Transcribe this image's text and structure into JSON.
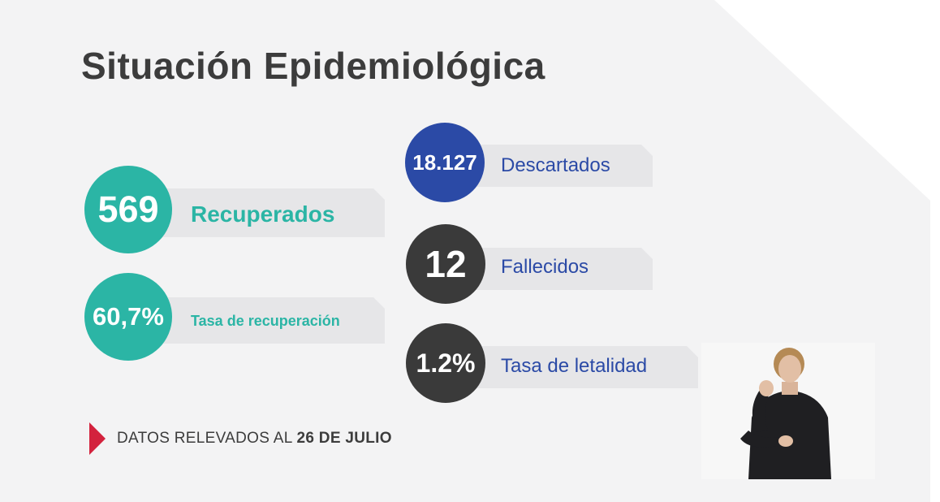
{
  "title": "Situación Epidemiológica",
  "stats": {
    "recuperados": {
      "value": "569",
      "label": "Recuperados",
      "color": "#2bb5a5"
    },
    "tasa_recuperacion": {
      "value": "60,7%",
      "label": "Tasa de recuperación",
      "color": "#2bb5a5"
    },
    "descartados": {
      "value": "18.127",
      "label": "Descartados",
      "color": "#2b4aa6"
    },
    "fallecidos": {
      "value": "12",
      "label": "Fallecidos",
      "color": "#3a3a3a"
    },
    "tasa_letalidad": {
      "value": "1.2%",
      "label": "Tasa de letalidad",
      "color": "#3a3a3a"
    }
  },
  "footer": {
    "prefix": "DATOS RELEVADOS AL",
    "date": "26 DE JULIO",
    "accent_color": "#d3223d"
  },
  "icons": {
    "footer_arrow": "red-triangle-arrow-icon"
  }
}
